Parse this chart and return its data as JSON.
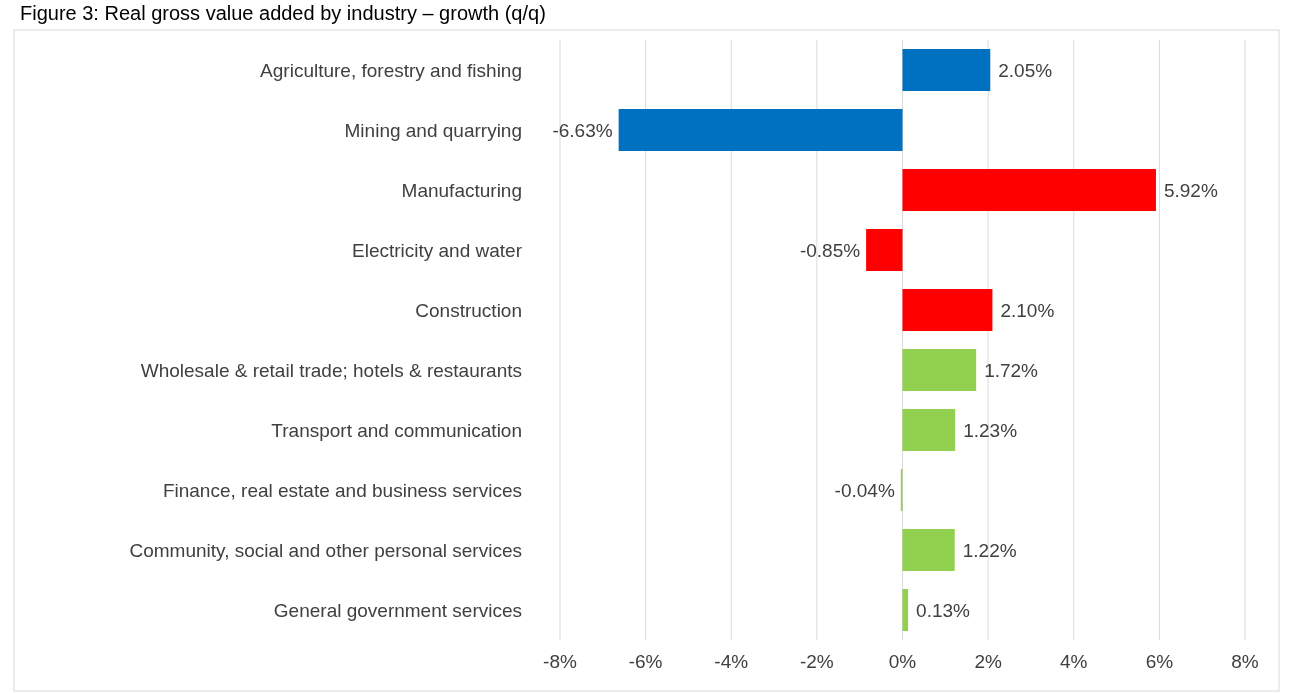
{
  "chart_data": {
    "type": "bar",
    "orientation": "horizontal",
    "title": "Figure 3: Real gross value added by industry – growth (q/q)",
    "categories": [
      "Agriculture, forestry and fishing",
      "Mining and quarrying",
      "Manufacturing",
      "Electricity and water",
      "Construction",
      "Wholesale & retail trade; hotels & restaurants",
      "Transport and communication",
      "Finance, real estate and business services",
      "Community, social and other personal services",
      "General government services"
    ],
    "values": [
      2.05,
      -6.63,
      5.92,
      -0.85,
      2.1,
      1.72,
      1.23,
      -0.04,
      1.22,
      0.13
    ],
    "colors": [
      "#0070c0",
      "#0070c0",
      "#ff0000",
      "#ff0000",
      "#ff0000",
      "#92d050",
      "#92d050",
      "#92d050",
      "#92d050",
      "#92d050"
    ],
    "value_labels": [
      "2.05%",
      "-6.63%",
      "5.92%",
      "-0.85%",
      "2.10%",
      "1.72%",
      "1.23%",
      "-0.04%",
      "1.22%",
      "0.13%"
    ],
    "xlim": [
      -8,
      8
    ],
    "xticks": [
      {
        "value": -8,
        "label": "-8%"
      },
      {
        "value": -6,
        "label": "-6%"
      },
      {
        "value": -4,
        "label": "-4%"
      },
      {
        "value": -2,
        "label": "-2%"
      },
      {
        "value": 0,
        "label": "0%"
      },
      {
        "value": 2,
        "label": "2%"
      },
      {
        "value": 4,
        "label": "4%"
      },
      {
        "value": 6,
        "label": "6%"
      },
      {
        "value": 8,
        "label": "8%"
      }
    ],
    "grid": "x"
  }
}
